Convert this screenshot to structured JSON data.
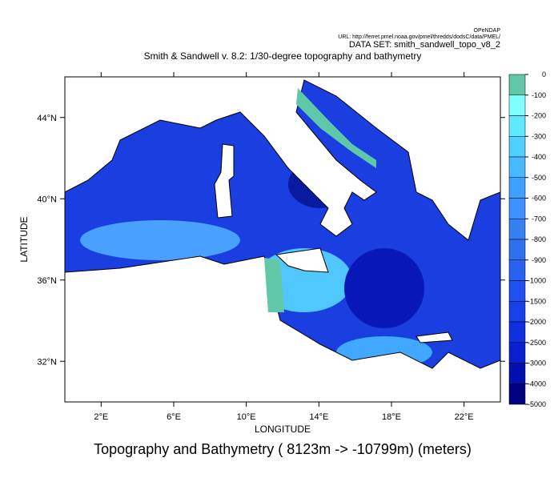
{
  "header": {
    "server": "OPeNDAP",
    "url": "URL: http://ferret.pmel.noaa.gov/pmel/thredds/dodsC/data/PMEL/",
    "dataset": "DATA SET: smith_sandwell_topo_v8_2"
  },
  "chart_data": {
    "type": "map",
    "title": "Smith & Sandwell v. 8.2: 1/30-degree topography and bathymetry",
    "x_label": "LONGITUDE",
    "y_label": "LATITUDE",
    "caption": "Topography and Bathymetry (  8123m -> -10799m) (meters)",
    "xlim": [
      0,
      24
    ],
    "ylim": [
      30,
      46
    ],
    "xticks": [
      {
        "value": 2,
        "label": "2°E"
      },
      {
        "value": 6,
        "label": "6°E"
      },
      {
        "value": 10,
        "label": "10°E"
      },
      {
        "value": 14,
        "label": "14°E"
      },
      {
        "value": 18,
        "label": "18°E"
      },
      {
        "value": 22,
        "label": "22°E"
      }
    ],
    "yticks": [
      {
        "value": 32,
        "label": "32°N"
      },
      {
        "value": 36,
        "label": "36°N"
      },
      {
        "value": 40,
        "label": "40°N"
      },
      {
        "value": 44,
        "label": "44°N"
      }
    ],
    "colorbar": {
      "levels": [
        0,
        -100,
        -200,
        -300,
        -400,
        -500,
        -600,
        -700,
        -800,
        -900,
        -1000,
        -1500,
        -2000,
        -2500,
        -3000,
        -4000,
        -5000
      ],
      "colors": [
        "#60c8a8",
        "#80ffff",
        "#60e8ff",
        "#50d0ff",
        "#48b8ff",
        "#40a0ff",
        "#3c90ff",
        "#3880f0",
        "#3070f0",
        "#2860f0",
        "#2050f0",
        "#1840e8",
        "#1030e0",
        "#0820d0",
        "#0010b0",
        "#000080"
      ]
    }
  }
}
